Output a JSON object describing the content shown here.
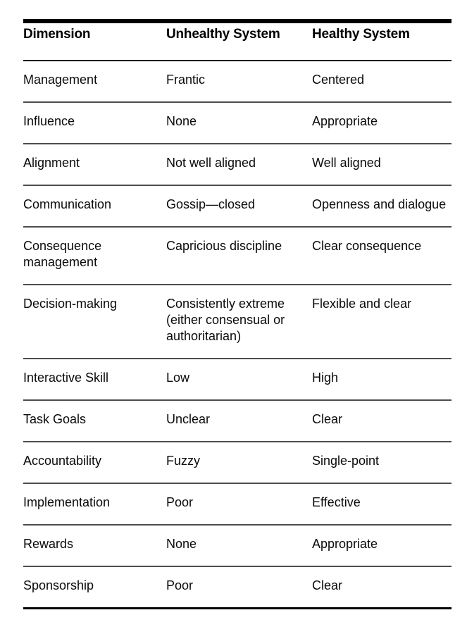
{
  "table": {
    "columns": [
      {
        "key": "dimension",
        "label": "Dimension"
      },
      {
        "key": "unhealthy",
        "label": "Unhealthy System"
      },
      {
        "key": "healthy",
        "label": "Healthy System"
      }
    ],
    "rows": [
      {
        "dimension": "Management",
        "unhealthy": "Frantic",
        "healthy": "Centered"
      },
      {
        "dimension": "Influence",
        "unhealthy": "None",
        "healthy": "Appropriate"
      },
      {
        "dimension": "Alignment",
        "unhealthy": "Not well aligned",
        "healthy": "Well aligned"
      },
      {
        "dimension": "Communication",
        "unhealthy": "Gossip—closed",
        "healthy": "Openness and dialogue"
      },
      {
        "dimension": "Consequence management",
        "unhealthy": "Capricious discipline",
        "healthy": "Clear consequence"
      },
      {
        "dimension": "Decision-making",
        "unhealthy": "Consistently extreme (either consensual or authoritarian)",
        "healthy": "Flexible and clear"
      },
      {
        "dimension": "Interactive Skill",
        "unhealthy": "Low",
        "healthy": "High"
      },
      {
        "dimension": "Task Goals",
        "unhealthy": "Unclear",
        "healthy": "Clear"
      },
      {
        "dimension": "Accountability",
        "unhealthy": "Fuzzy",
        "healthy": "Single-point"
      },
      {
        "dimension": "Implementation",
        "unhealthy": "Poor",
        "healthy": "Effective"
      },
      {
        "dimension": "Rewards",
        "unhealthy": "None",
        "healthy": "Appropriate"
      },
      {
        "dimension": "Sponsorship",
        "unhealthy": "Poor",
        "healthy": "Clear"
      }
    ]
  },
  "colors": {
    "background": "#ffffff",
    "text": "#0a0a0a",
    "rule_heavy": "#000000",
    "rule_header": "#1a1a1a",
    "rule_row": "#4d4d4d"
  }
}
